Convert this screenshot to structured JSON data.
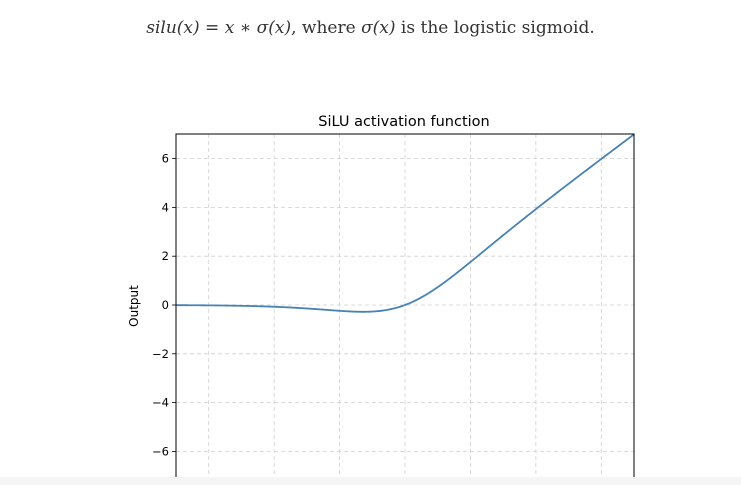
{
  "description": {
    "lhs": "silu(x)",
    "equals": " = ",
    "rhs": "x ∗ σ(x)",
    "middle": ", where ",
    "sigma_term": "σ(x)",
    "suffix": " is the logistic sigmoid."
  },
  "chart_data": {
    "type": "line",
    "title": "SiLU activation function",
    "xlabel": "",
    "ylabel": "Output",
    "xlim": [
      -7,
      7
    ],
    "ylim": [
      -7,
      7
    ],
    "yticks": [
      -6,
      -4,
      -2,
      0,
      2,
      4,
      6
    ],
    "ytick_labels": [
      "−6",
      "−4",
      "−2",
      "0",
      "2",
      "4",
      "6"
    ],
    "xticks": [
      -6,
      -4,
      -2,
      0,
      2,
      4,
      6
    ],
    "grid": true,
    "grid_style": "dashed",
    "series": [
      {
        "function": "silu",
        "x_range": [
          -7,
          7
        ],
        "color": "#4682b4"
      }
    ]
  }
}
